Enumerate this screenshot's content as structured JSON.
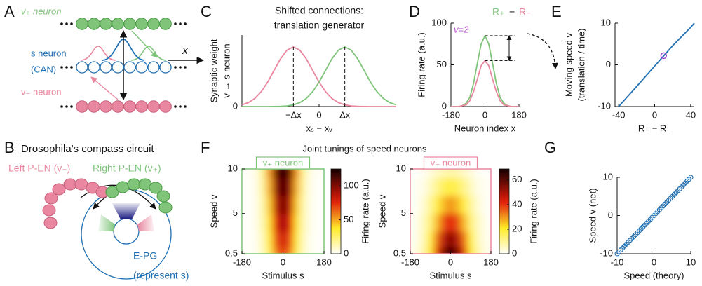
{
  "panel_labels": [
    "A",
    "B",
    "C",
    "D",
    "E",
    "F",
    "G"
  ],
  "diagram_a": {
    "top_label": "v₊ neuron",
    "middle_label": "s neuron",
    "middle_sublabel": "(CAN)",
    "bottom_label": "v₋ neuron",
    "axis_label": "x"
  },
  "diagram_b": {
    "title": "Drosophila's compass circuit",
    "left_label": "Left P-EN (v₋)",
    "right_label": "Right P-EN (v₊)",
    "ring_label": "E-PG",
    "ring_sublabel": "(represent s)"
  },
  "figure_f_title": "Joint tunings of speed neurons",
  "chart_data": [
    {
      "type": "line",
      "title": "Shifted connections:",
      "subtitle": "translation generator",
      "xlabel": "xₛ − xᵥ",
      "ylabel": [
        "Synaptic weight",
        "v → s neuron"
      ],
      "x": [
        -3,
        -2.75,
        -2.5,
        -2.25,
        -2,
        -1.75,
        -1.5,
        -1.25,
        -1,
        -0.75,
        -0.5,
        -0.25,
        0,
        0.25,
        0.5,
        0.75,
        1,
        1.25,
        1.5,
        1.75,
        2,
        2.25,
        2.5,
        2.75,
        3
      ],
      "series": [
        {
          "color": "#e8879f",
          "values": [
            0.029,
            0.066,
            0.135,
            0.249,
            0.411,
            0.607,
            0.801,
            0.946,
            1,
            0.946,
            0.801,
            0.607,
            0.411,
            0.249,
            0.135,
            0.066,
            0.029,
            0.011,
            0.004,
            0.001,
            0,
            0,
            0,
            0,
            0
          ]
        },
        {
          "color": "#7fc47a",
          "values": [
            0,
            0,
            0,
            0,
            0,
            0.001,
            0.004,
            0.011,
            0.029,
            0.066,
            0.135,
            0.249,
            0.411,
            0.607,
            0.801,
            0.946,
            1,
            0.946,
            0.801,
            0.607,
            0.411,
            0.249,
            0.135,
            0.066,
            0.029
          ]
        }
      ],
      "xlim": [
        -3,
        3
      ],
      "ylim": [
        0,
        1.2
      ],
      "xticks": [
        {
          "value": -1,
          "label": "−Δx"
        },
        0,
        {
          "value": 1,
          "label": "Δx"
        }
      ],
      "yticks": [
        0
      ]
    },
    {
      "type": "line",
      "xlabel": "Neuron index x",
      "ylabel": "Firing rate (a.u.)",
      "annotation": "v=2",
      "annotation_color": "#b050c8",
      "legend_operator": "−",
      "x": [
        -180,
        -160,
        -140,
        -120,
        -100,
        -80,
        -60,
        -40,
        -20,
        0,
        20,
        40,
        60,
        80,
        100,
        120,
        140,
        160,
        180
      ],
      "series": [
        {
          "name": "R₊",
          "color": "#7fc47a",
          "values": [
            0,
            0,
            0,
            1,
            4,
            11,
            28,
            52,
            75,
            85,
            75,
            52,
            28,
            11,
            4,
            1,
            0,
            0,
            0
          ]
        },
        {
          "name": "R₋",
          "color": "#e8879f",
          "values": [
            0,
            0,
            0,
            1,
            2,
            7,
            18,
            33,
            49,
            55,
            49,
            33,
            18,
            7,
            2,
            1,
            0,
            0,
            0
          ]
        }
      ],
      "xlim": [
        -180,
        180
      ],
      "ylim": [
        0,
        100
      ],
      "xticks": [
        -180,
        0,
        180
      ],
      "yticks": [
        0,
        50,
        100
      ]
    },
    {
      "type": "line",
      "xlabel": "R₊ − R₋",
      "ylabel": [
        "Moving speed v",
        "(translation / time)"
      ],
      "x": [
        -40,
        -20,
        0,
        20,
        40,
        44
      ],
      "values": [
        -10,
        -5.2,
        -0.3,
        4.6,
        9,
        10
      ],
      "color": "#1f6fb2",
      "marker": {
        "x": 10,
        "y": 2.2,
        "color": "#9b4fc4"
      },
      "xlim": [
        -44,
        44
      ],
      "ylim": [
        -10,
        10
      ],
      "xticks": [
        -40,
        0,
        40
      ],
      "yticks": [
        -10,
        0,
        10
      ]
    },
    {
      "type": "heatmap",
      "subtitle": "v₊ neuron",
      "subtitle_color": "#7fc47a",
      "xlabel": "Stimulus s",
      "ylabel": "Speed v",
      "colorbar_label": "Firing rate (a.u.)",
      "x": [
        -180,
        -150,
        -120,
        -90,
        -60,
        -30,
        0,
        30,
        60,
        90,
        120,
        150,
        180
      ],
      "y": [
        0.5,
        2,
        4,
        6,
        8,
        10
      ],
      "values": [
        [
          0,
          0,
          2,
          10,
          30,
          58,
          73,
          58,
          30,
          10,
          2,
          0,
          0
        ],
        [
          0,
          0,
          2,
          11,
          34,
          66,
          82,
          66,
          34,
          11,
          2,
          0,
          0
        ],
        [
          0,
          0,
          3,
          13,
          39,
          75,
          94,
          75,
          39,
          13,
          3,
          0,
          0
        ],
        [
          0,
          0,
          3,
          14,
          43,
          85,
          106,
          85,
          43,
          14,
          3,
          0,
          0
        ],
        [
          0,
          0,
          3,
          16,
          48,
          94,
          118,
          94,
          48,
          16,
          3,
          0,
          0
        ],
        [
          0,
          1,
          4,
          18,
          53,
          104,
          130,
          104,
          53,
          18,
          4,
          1,
          0
        ]
      ],
      "xlim": [
        -180,
        180
      ],
      "ylim": [
        0.5,
        10
      ],
      "xticks": [
        -180,
        0,
        180
      ],
      "yticks": [
        0.5,
        5,
        10
      ],
      "clim": [
        0,
        125
      ],
      "cticks": [
        0,
        50,
        100
      ]
    },
    {
      "type": "heatmap",
      "subtitle": "v₋ neuron",
      "subtitle_color": "#e8879f",
      "xlabel": "Stimulus s",
      "ylabel": "Speed v",
      "colorbar_label": "Firing rate (a.u.)",
      "x": [
        -180,
        -150,
        -120,
        -90,
        -60,
        -30,
        0,
        30,
        60,
        90,
        120,
        150,
        180
      ],
      "y": [
        0.5,
        2,
        4,
        6,
        8,
        10
      ],
      "values": [
        [
          1,
          3,
          9,
          21,
          40,
          57,
          65,
          57,
          40,
          21,
          9,
          3,
          1
        ],
        [
          1,
          2,
          7,
          18,
          34,
          48,
          55,
          48,
          34,
          18,
          7,
          2,
          1
        ],
        [
          0,
          2,
          6,
          13,
          26,
          37,
          42,
          37,
          26,
          13,
          6,
          2,
          0
        ],
        [
          0,
          1,
          4,
          10,
          18,
          26,
          30,
          26,
          18,
          10,
          4,
          1,
          0
        ],
        [
          0,
          1,
          2,
          6,
          11,
          16,
          18,
          16,
          11,
          6,
          2,
          1,
          0
        ],
        [
          0,
          0,
          1,
          3,
          5,
          7,
          8,
          7,
          5,
          3,
          1,
          0,
          0
        ]
      ],
      "xlim": [
        -180,
        180
      ],
      "ylim": [
        0.5,
        10
      ],
      "xticks": [
        -180,
        0,
        180
      ],
      "yticks": [
        0.5,
        5,
        10
      ],
      "clim": [
        0,
        69
      ],
      "cticks": [
        0,
        20,
        40,
        60
      ]
    },
    {
      "type": "scatter",
      "xlabel": "Speed (theory)",
      "ylabel": "Speed v (net)",
      "color": "#1f6fb2",
      "x": [
        -10,
        -9.5,
        -9,
        -8.5,
        -8,
        -7.5,
        -7,
        -6.5,
        -6,
        -5.5,
        -5,
        -4.5,
        -4,
        -3.5,
        -3,
        -2.5,
        -2,
        -1.5,
        -1,
        -0.5,
        0,
        0.5,
        1,
        1.5,
        2,
        2.5,
        3,
        3.5,
        4,
        4.5,
        5,
        5.5,
        6,
        6.5,
        7,
        7.5,
        8,
        8.5,
        9,
        9.5,
        10
      ],
      "values": [
        -10,
        -9.5,
        -9,
        -8.5,
        -8,
        -7.5,
        -7,
        -6.5,
        -6,
        -5.5,
        -5,
        -4.5,
        -4,
        -3.5,
        -3,
        -2.5,
        -2,
        -1.5,
        -1,
        -0.5,
        0,
        0.5,
        1,
        1.5,
        2,
        2.5,
        3,
        3.5,
        4,
        4.5,
        5,
        5.5,
        6,
        6.5,
        7,
        7.5,
        8,
        8.5,
        9,
        9.5,
        10
      ],
      "xlim": [
        -10,
        10
      ],
      "ylim": [
        -10,
        10
      ],
      "xticks": [
        -10,
        0,
        10
      ],
      "yticks": [
        -10,
        0,
        10
      ]
    }
  ]
}
